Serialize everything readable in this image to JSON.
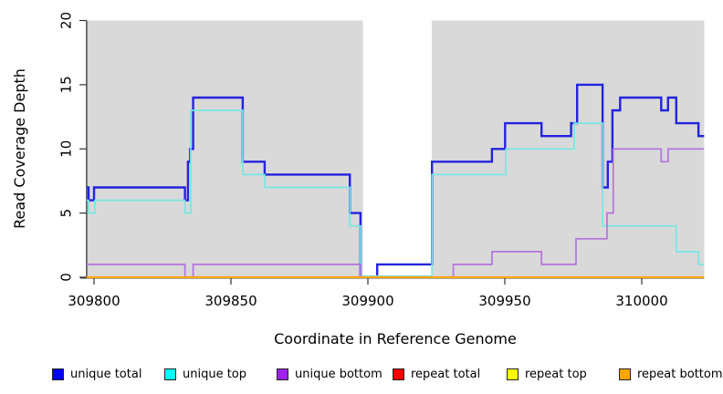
{
  "chart_data": {
    "type": "line",
    "step": true,
    "title": "",
    "xlabel": "Coordinate in Reference Genome",
    "ylabel": "Read Coverage Depth",
    "xlim": [
      309797.3,
      310022.8
    ],
    "ylim": [
      0,
      20
    ],
    "x_ticks": [
      309800,
      309850,
      309900,
      309950,
      310000
    ],
    "y_ticks": [
      0,
      5,
      10,
      15,
      20
    ],
    "grid": false,
    "panel_color": "#d9d9d9",
    "shaded_regions": [
      [
        309797.3,
        309898.2
      ],
      [
        309923.3,
        310022.8
      ]
    ],
    "gap_region": [
      309898.2,
      309923.3
    ],
    "legend_position": "bottom",
    "series": [
      {
        "name": "unique total",
        "color": "#2323de",
        "legend_color": "#0000ff",
        "width": 2.4,
        "steps": [
          [
            309797.3,
            7
          ],
          [
            309798,
            6
          ],
          [
            309800,
            7
          ],
          [
            309833.2,
            6
          ],
          [
            309834.3,
            9
          ],
          [
            309835.1,
            10
          ],
          [
            309836.2,
            14
          ],
          [
            309854.3,
            9
          ],
          [
            309862.3,
            8
          ],
          [
            309893.4,
            5
          ],
          [
            309897.3,
            0
          ],
          [
            309903.4,
            1
          ],
          [
            309923.4,
            9
          ],
          [
            309945.3,
            10
          ],
          [
            309950.1,
            12
          ],
          [
            309963.4,
            11
          ],
          [
            309974.2,
            12
          ],
          [
            309976.4,
            15
          ],
          [
            309985.7,
            7
          ],
          [
            309987.6,
            9
          ],
          [
            309989.3,
            13
          ],
          [
            309992.1,
            14
          ],
          [
            310007.1,
            13
          ],
          [
            310009.6,
            14
          ],
          [
            310012.6,
            12
          ],
          [
            310020.7,
            11
          ]
        ]
      },
      {
        "name": "unique top",
        "color": "#76e7e3",
        "legend_color": "#00ffff",
        "width": 1.7,
        "steps": [
          [
            309797.3,
            6
          ],
          [
            309798,
            5
          ],
          [
            309800.3,
            6
          ],
          [
            309833.2,
            5
          ],
          [
            309835.3,
            13
          ],
          [
            309854.3,
            8
          ],
          [
            309862.3,
            7
          ],
          [
            309893.4,
            4
          ],
          [
            309897.3,
            0
          ],
          [
            309923.4,
            8
          ],
          [
            309950.4,
            10
          ],
          [
            309975.3,
            12
          ],
          [
            309985.7,
            4
          ],
          [
            310012.6,
            2
          ],
          [
            310020.7,
            1
          ]
        ]
      },
      {
        "name": "unique bottom",
        "color": "#b273de",
        "legend_color": "#a020f0",
        "width": 1.7,
        "steps": [
          [
            309797.3,
            1
          ],
          [
            309833.2,
            0
          ],
          [
            309836.2,
            1
          ],
          [
            309897.3,
            0
          ],
          [
            309931.2,
            1
          ],
          [
            309945.3,
            2
          ],
          [
            309963.4,
            1
          ],
          [
            309976,
            3
          ],
          [
            309987.3,
            5
          ],
          [
            309989.6,
            10
          ],
          [
            310007.1,
            9
          ],
          [
            310009.6,
            10
          ]
        ]
      },
      {
        "name": "repeat total",
        "color": "#ff0000",
        "legend_color": "#ff0000",
        "width": 1.7,
        "steps": [
          [
            309797.3,
            0
          ]
        ]
      },
      {
        "name": "repeat top",
        "color": "#ffff00",
        "legend_color": "#ffff00",
        "width": 1.7,
        "steps": [
          [
            309797.3,
            0
          ]
        ]
      },
      {
        "name": "repeat bottom",
        "color": "#ffa500",
        "legend_color": "#ffa500",
        "width": 2.2,
        "steps": [
          [
            309797.3,
            0
          ]
        ]
      }
    ]
  },
  "legend": {
    "items": [
      {
        "label": "unique total",
        "color": "#0000ff"
      },
      {
        "label": "unique top",
        "color": "#00ffff"
      },
      {
        "label": "unique bottom",
        "color": "#a020f0"
      },
      {
        "label": "repeat total",
        "color": "#ff0000"
      },
      {
        "label": "repeat top",
        "color": "#ffff00"
      },
      {
        "label": "repeat bottom",
        "color": "#ffa500"
      }
    ]
  }
}
